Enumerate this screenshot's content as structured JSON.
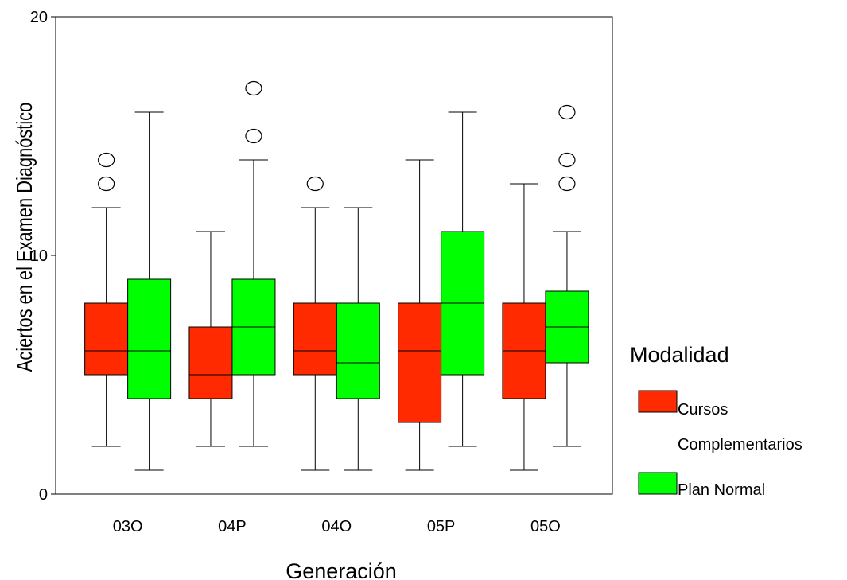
{
  "chart_data": {
    "type": "boxplot",
    "title": "",
    "xlabel": "Generación",
    "ylabel": "Aciertos en el Examen Diagnóstico",
    "ylim": [
      0,
      20
    ],
    "yticks": [
      "0",
      "10",
      "20"
    ],
    "categories": [
      "03O",
      "04P",
      "04O",
      "05P",
      "05O"
    ],
    "grid": false,
    "legend": {
      "title": "Modalidad",
      "placement": "right",
      "entries": [
        "Cursos",
        "Complementarios",
        "Plan Normal"
      ]
    },
    "series": [
      {
        "name": "Cursos Complementarios",
        "color": "#ff2a00",
        "boxes": [
          {
            "min": 2,
            "q1": 5,
            "median": 6,
            "q3": 8,
            "max": 12,
            "outliers": [
              13,
              14
            ]
          },
          {
            "min": 2,
            "q1": 4,
            "median": 5,
            "q3": 7,
            "max": 11,
            "outliers": []
          },
          {
            "min": 1,
            "q1": 5,
            "median": 6,
            "q3": 8,
            "max": 12,
            "outliers": [
              13
            ]
          },
          {
            "min": 1,
            "q1": 3,
            "median": 6,
            "q3": 8,
            "max": 14,
            "outliers": []
          },
          {
            "min": 1,
            "q1": 4,
            "median": 6,
            "q3": 8,
            "max": 13,
            "outliers": []
          }
        ]
      },
      {
        "name": "Plan Normal",
        "color": "#00ff00",
        "boxes": [
          {
            "min": 1,
            "q1": 4,
            "median": 6,
            "q3": 9,
            "max": 16,
            "outliers": []
          },
          {
            "min": 2,
            "q1": 5,
            "median": 7,
            "q3": 9,
            "max": 14,
            "outliers": [
              15,
              17
            ]
          },
          {
            "min": 1,
            "q1": 4,
            "median": 5.5,
            "q3": 8,
            "max": 12,
            "outliers": []
          },
          {
            "min": 2,
            "q1": 5,
            "median": 8,
            "q3": 11,
            "max": 16,
            "outliers": []
          },
          {
            "min": 2,
            "q1": 5.5,
            "median": 7,
            "q3": 8.5,
            "max": 11,
            "outliers": [
              13,
              14,
              16
            ]
          }
        ]
      }
    ]
  }
}
